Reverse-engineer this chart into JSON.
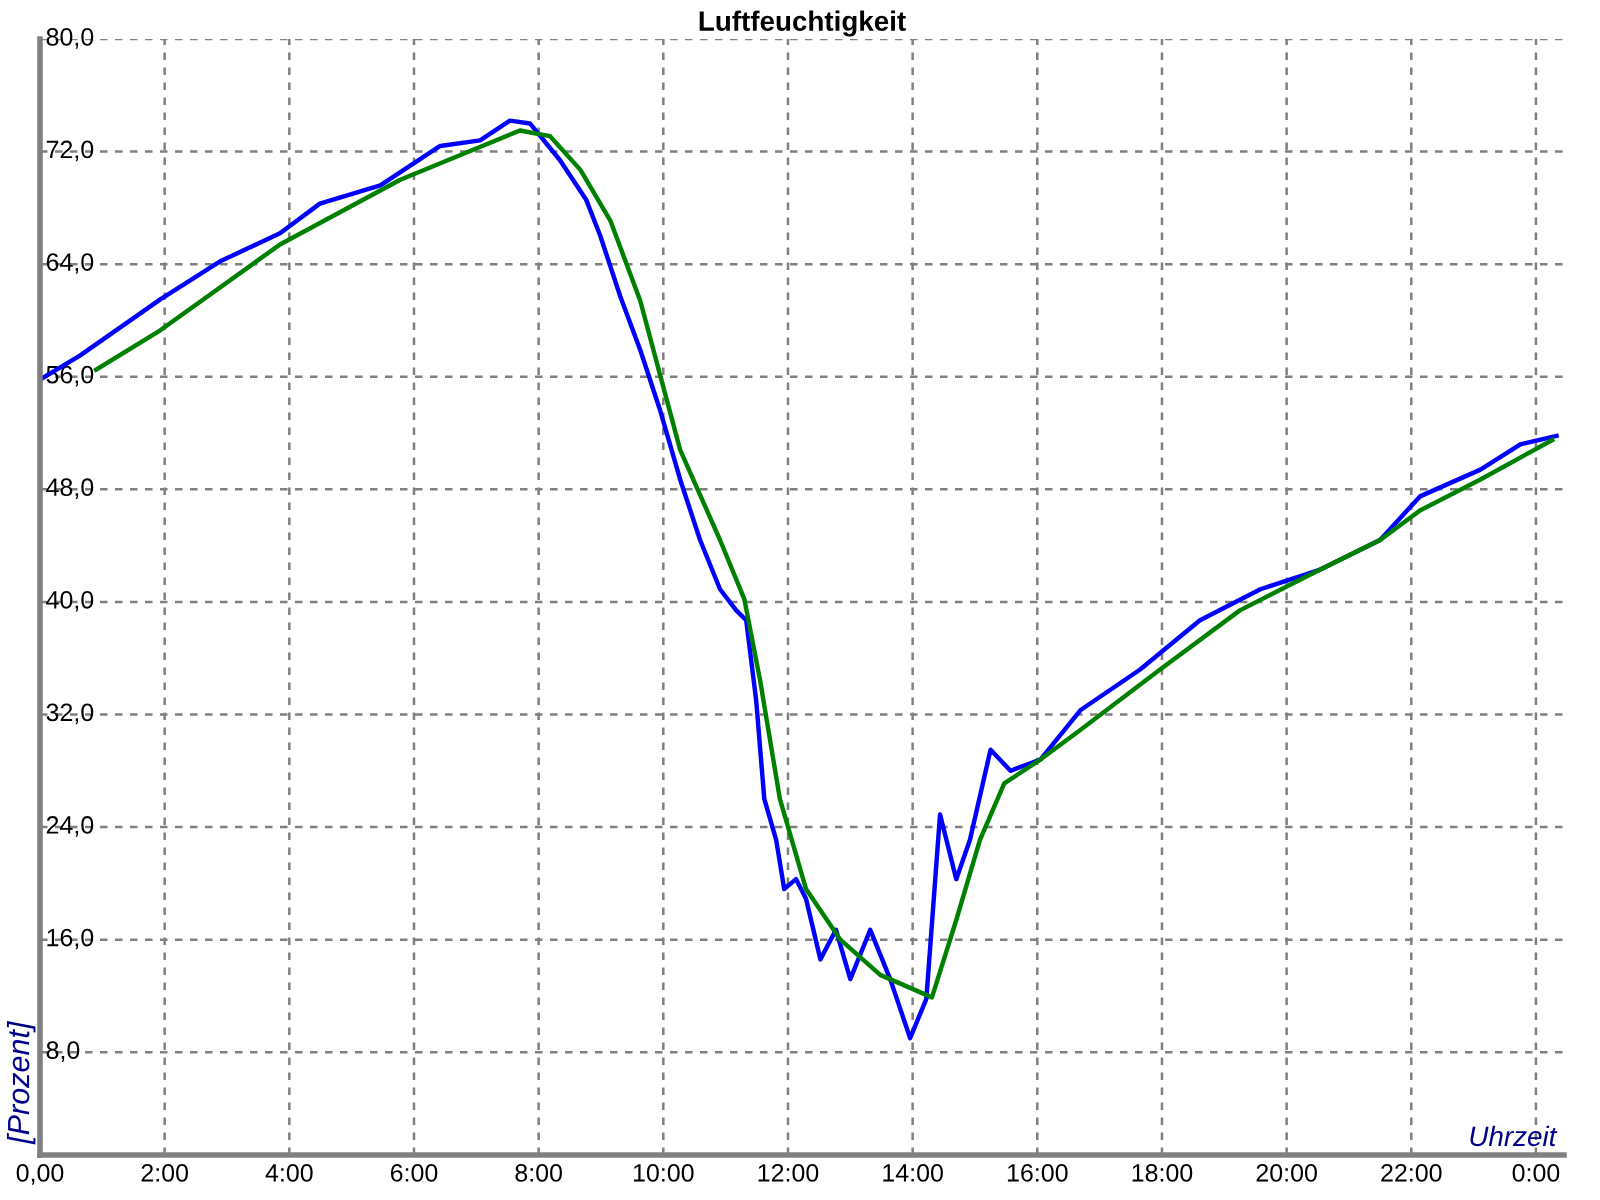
{
  "chart_data": {
    "type": "line",
    "title": "Luftfeuchtigkeit",
    "xlabel": "Uhrzeit",
    "ylabel": "[Prozent]",
    "xlim": [
      0,
      24.45
    ],
    "ylim": [
      0.7,
      80
    ],
    "xticks": [
      {
        "value": 0,
        "label": "0,00"
      },
      {
        "value": 2,
        "label": "2:00"
      },
      {
        "value": 4,
        "label": "4:00"
      },
      {
        "value": 6,
        "label": "6:00"
      },
      {
        "value": 8,
        "label": "8:00"
      },
      {
        "value": 10,
        "label": "10:00"
      },
      {
        "value": 12,
        "label": "12:00"
      },
      {
        "value": 14,
        "label": "14:00"
      },
      {
        "value": 16,
        "label": "16:00"
      },
      {
        "value": 18,
        "label": "18:00"
      },
      {
        "value": 20,
        "label": "20:00"
      },
      {
        "value": 22,
        "label": "22:00"
      },
      {
        "value": 24,
        "label": "0:00"
      }
    ],
    "yticks": [
      {
        "value": 8,
        "label": "8,0"
      },
      {
        "value": 16,
        "label": "16,0"
      },
      {
        "value": 24,
        "label": "24,0"
      },
      {
        "value": 32,
        "label": "32,0"
      },
      {
        "value": 40,
        "label": "40,0"
      },
      {
        "value": 48,
        "label": "48,0"
      },
      {
        "value": 56,
        "label": "56,0"
      },
      {
        "value": 64,
        "label": "64,0"
      },
      {
        "value": 72,
        "label": "72,0"
      },
      {
        "value": 80,
        "label": "80,0"
      }
    ],
    "grid": true,
    "legend": false,
    "marker": "none",
    "line_style": "solid",
    "series": [
      {
        "color": "#0000ff",
        "x": [
          0,
          0.64,
          1.93,
          2.89,
          3.85,
          4.49,
          5.46,
          6.42,
          7.06,
          7.54,
          7.86,
          8.34,
          8.76,
          8.99,
          9.31,
          9.63,
          9.95,
          10.27,
          10.59,
          10.91,
          11.17,
          11.33,
          11.49,
          11.62,
          11.81,
          11.94,
          12.13,
          12.29,
          12.52,
          12.77,
          13.0,
          13.32,
          13.64,
          13.96,
          14.22,
          14.44,
          14.7,
          14.92,
          15.25,
          15.57,
          16.05,
          16.69,
          17.65,
          18.61,
          19.58,
          20.54,
          21.5,
          22.14,
          23.11,
          23.75,
          24.33
        ],
        "values": [
          55.8,
          57.5,
          61.5,
          64.2,
          66.2,
          68.3,
          69.6,
          72.4,
          72.8,
          74.2,
          74.0,
          71.4,
          68.6,
          66.0,
          61.7,
          57.9,
          53.6,
          48.7,
          44.4,
          40.9,
          39.4,
          38.7,
          33.0,
          26.0,
          23.1,
          19.6,
          20.3,
          18.9,
          14.6,
          16.7,
          13.2,
          16.7,
          13.2,
          9.0,
          11.8,
          24.9,
          20.3,
          23.1,
          29.5,
          28.0,
          28.8,
          32.3,
          35.2,
          38.7,
          40.9,
          42.3,
          44.4,
          47.5,
          49.4,
          51.2,
          51.8
        ]
      },
      {
        "color": "#008000",
        "x": [
          0.9,
          1.93,
          3.85,
          5.78,
          7.7,
          8.18,
          8.67,
          9.15,
          9.63,
          10.27,
          10.91,
          11.3,
          11.55,
          11.87,
          12.29,
          12.84,
          13.48,
          14.31,
          14.7,
          15.08,
          15.47,
          16.05,
          16.69,
          17.97,
          19.25,
          20.54,
          21.5,
          22.14,
          23.11,
          24.26
        ],
        "values": [
          56.5,
          59.3,
          65.4,
          70.0,
          73.5,
          73.1,
          70.7,
          67.1,
          61.4,
          50.8,
          44.4,
          40.2,
          34.5,
          26.0,
          19.6,
          16.0,
          13.5,
          11.9,
          17.4,
          23.1,
          27.1,
          28.8,
          30.9,
          35.2,
          39.4,
          42.3,
          44.4,
          46.5,
          48.7,
          51.5
        ]
      }
    ]
  }
}
